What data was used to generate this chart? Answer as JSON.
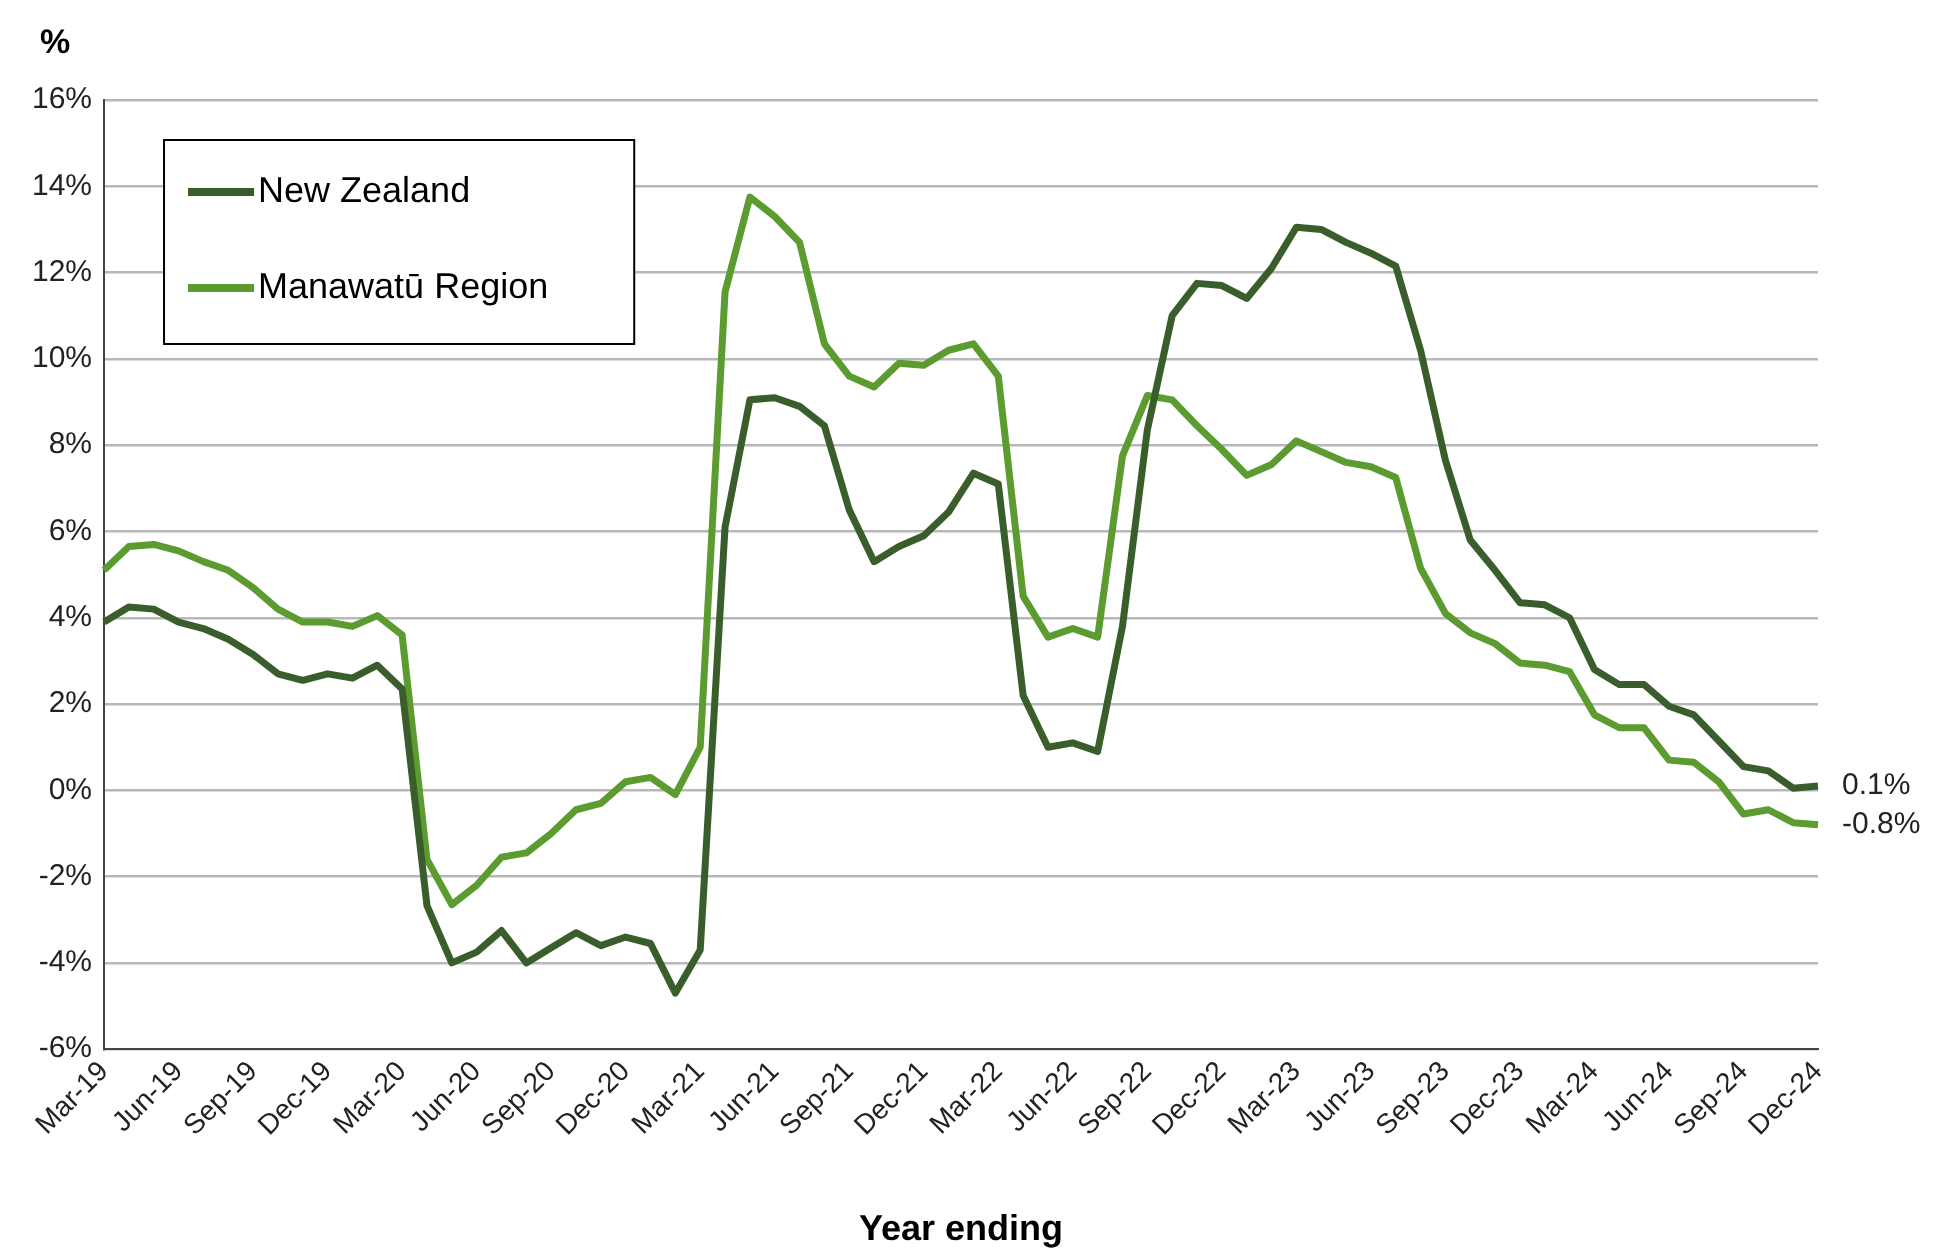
{
  "chart_data": {
    "type": "line",
    "ylabel": "%",
    "xlabel": "Year ending",
    "categories": [
      "Mar-19",
      null,
      null,
      "Jun-19",
      null,
      null,
      "Sep-19",
      null,
      null,
      "Dec-19",
      null,
      null,
      "Mar-20",
      null,
      null,
      "Jun-20",
      null,
      null,
      "Sep-20",
      null,
      null,
      "Dec-20",
      null,
      null,
      "Mar-21",
      null,
      null,
      "Jun-21",
      null,
      null,
      "Sep-21",
      null,
      null,
      "Dec-21",
      null,
      null,
      "Mar-22",
      null,
      null,
      "Jun-22",
      null,
      null,
      "Sep-22",
      null,
      null,
      "Dec-22",
      null,
      null,
      "Mar-23",
      null,
      null,
      "Jun-23",
      null,
      null,
      "Sep-23",
      null,
      null,
      "Dec-23",
      null,
      null,
      "Mar-24",
      null,
      null,
      "Jun-24",
      null,
      null,
      "Sep-24",
      null,
      null,
      "Dec-24"
    ],
    "series": [
      {
        "name": "New Zealand",
        "color": "#3a5e2b",
        "values": [
          3.9,
          4.25,
          4.2,
          3.9,
          3.75,
          3.5,
          3.15,
          2.7,
          2.55,
          2.7,
          2.6,
          2.9,
          2.35,
          -2.67,
          -4.0,
          -3.75,
          -3.25,
          -4.0,
          -3.65,
          -3.3,
          -3.6,
          -3.4,
          -3.55,
          -4.7,
          -3.7,
          6.1,
          9.05,
          9.1,
          8.9,
          8.45,
          6.5,
          5.3,
          5.65,
          5.9,
          6.45,
          7.35,
          7.1,
          2.2,
          1.0,
          1.1,
          0.9,
          3.8,
          8.35,
          11.0,
          11.75,
          11.7,
          11.4,
          12.1,
          13.05,
          13.0,
          12.7,
          12.45,
          12.15,
          10.2,
          7.65,
          5.8,
          5.1,
          4.35,
          4.3,
          4.0,
          2.8,
          2.45,
          2.45,
          1.95,
          1.75,
          1.15,
          0.55,
          0.45,
          0.05,
          0.1
        ]
      },
      {
        "name": "Manawatū Region",
        "color": "#5b9b30",
        "values": [
          5.1,
          5.65,
          5.7,
          5.55,
          5.3,
          5.1,
          4.7,
          4.2,
          3.9,
          3.9,
          3.8,
          4.05,
          3.6,
          -1.6,
          -2.65,
          -2.2,
          -1.55,
          -1.45,
          -1.0,
          -0.45,
          -0.3,
          0.2,
          0.3,
          -0.1,
          1.0,
          11.55,
          13.75,
          13.3,
          12.7,
          10.35,
          9.6,
          9.35,
          9.9,
          9.85,
          10.2,
          10.35,
          9.6,
          4.5,
          3.55,
          3.75,
          3.55,
          7.75,
          9.15,
          9.05,
          8.45,
          7.9,
          7.3,
          7.55,
          8.1,
          7.85,
          7.6,
          7.5,
          7.25,
          5.15,
          4.1,
          3.65,
          3.4,
          2.95,
          2.9,
          2.75,
          1.75,
          1.45,
          1.45,
          0.7,
          0.65,
          0.2,
          -0.55,
          -0.45,
          -0.75,
          -0.8
        ]
      }
    ],
    "ylim": [
      -6,
      16
    ],
    "yticks": [
      {
        "value": -6,
        "label": "-6%"
      },
      {
        "value": -4,
        "label": "-4%"
      },
      {
        "value": -2,
        "label": "-2%"
      },
      {
        "value": 0,
        "label": "0%"
      },
      {
        "value": 2,
        "label": "2%"
      },
      {
        "value": 4,
        "label": "4%"
      },
      {
        "value": 6,
        "label": "6%"
      },
      {
        "value": 8,
        "label": "8%"
      },
      {
        "value": 10,
        "label": "10%"
      },
      {
        "value": 12,
        "label": "12%"
      },
      {
        "value": 14,
        "label": "14%"
      },
      {
        "value": 16,
        "label": "16%"
      }
    ],
    "grid": "y",
    "legend": "top left",
    "marker": "none",
    "line_style": "solid",
    "annotations": [
      {
        "text": "0.1%",
        "x": "Dec-24",
        "y": 0.1
      },
      {
        "text": "-0.8%",
        "x": "Dec-24",
        "y": -0.8
      }
    ]
  }
}
